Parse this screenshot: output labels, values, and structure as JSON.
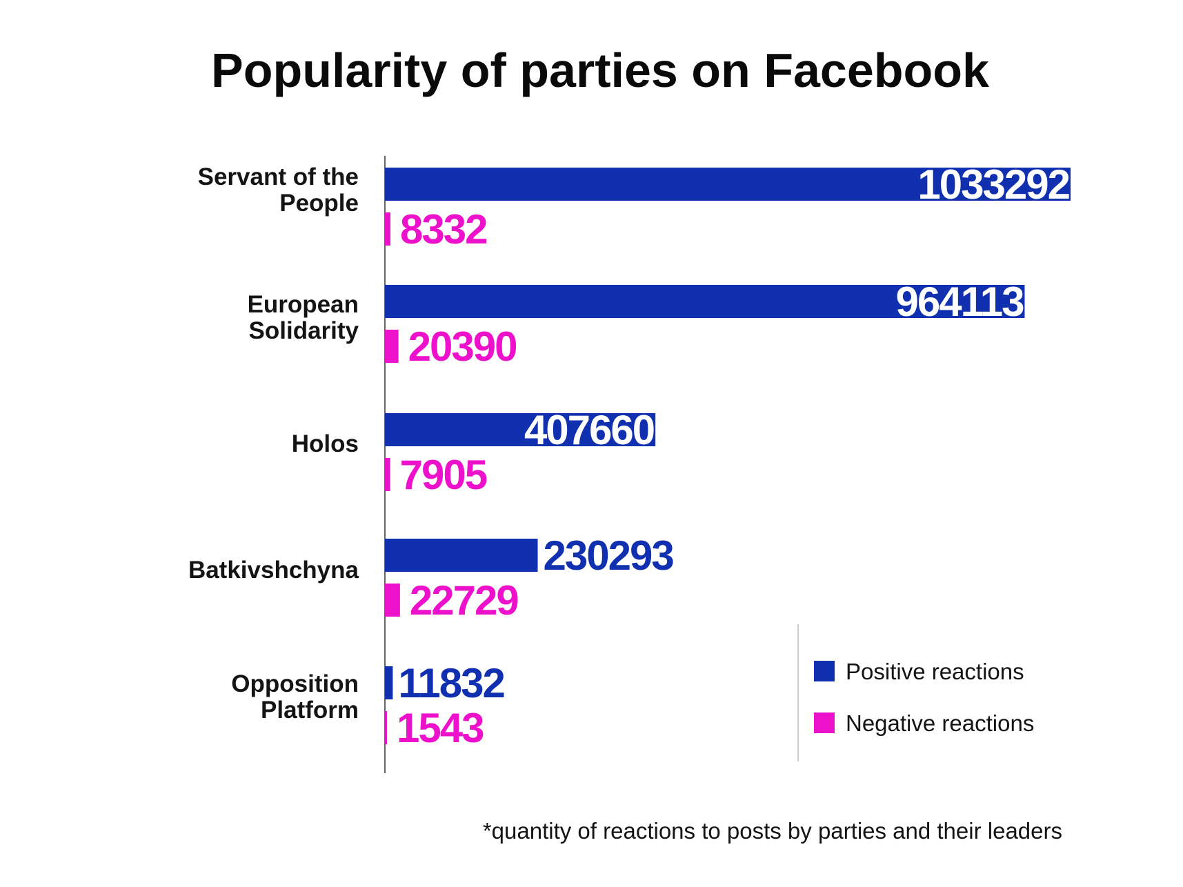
{
  "chart_data": {
    "type": "bar",
    "orientation": "horizontal",
    "title": "Popularity of parties on Facebook",
    "categories": [
      [
        "Servant of the",
        "People"
      ],
      [
        "European",
        "Solidarity"
      ],
      [
        "Holos"
      ],
      [
        "Batkivshchyna"
      ],
      [
        "Opposition",
        "Platform"
      ]
    ],
    "series": [
      {
        "name": "Positive reactions",
        "color": "#1030b0",
        "values": [
          1033292,
          964113,
          407660,
          230293,
          11832
        ]
      },
      {
        "name": "Negative reactions",
        "color": "#ee11cc",
        "values": [
          8332,
          20390,
          7905,
          22729,
          1543
        ]
      }
    ],
    "value_labels": {
      "positive": [
        "1033292",
        "964113",
        "407660",
        "230293",
        "11832"
      ],
      "negative": [
        "8332",
        "20390",
        "7905",
        "22729",
        "1543"
      ]
    },
    "xlim": [
      0,
      1033292
    ],
    "grid": false,
    "legend_position": "bottom-right",
    "footnote": "*quantity of reactions to posts by parties and their leaders"
  }
}
